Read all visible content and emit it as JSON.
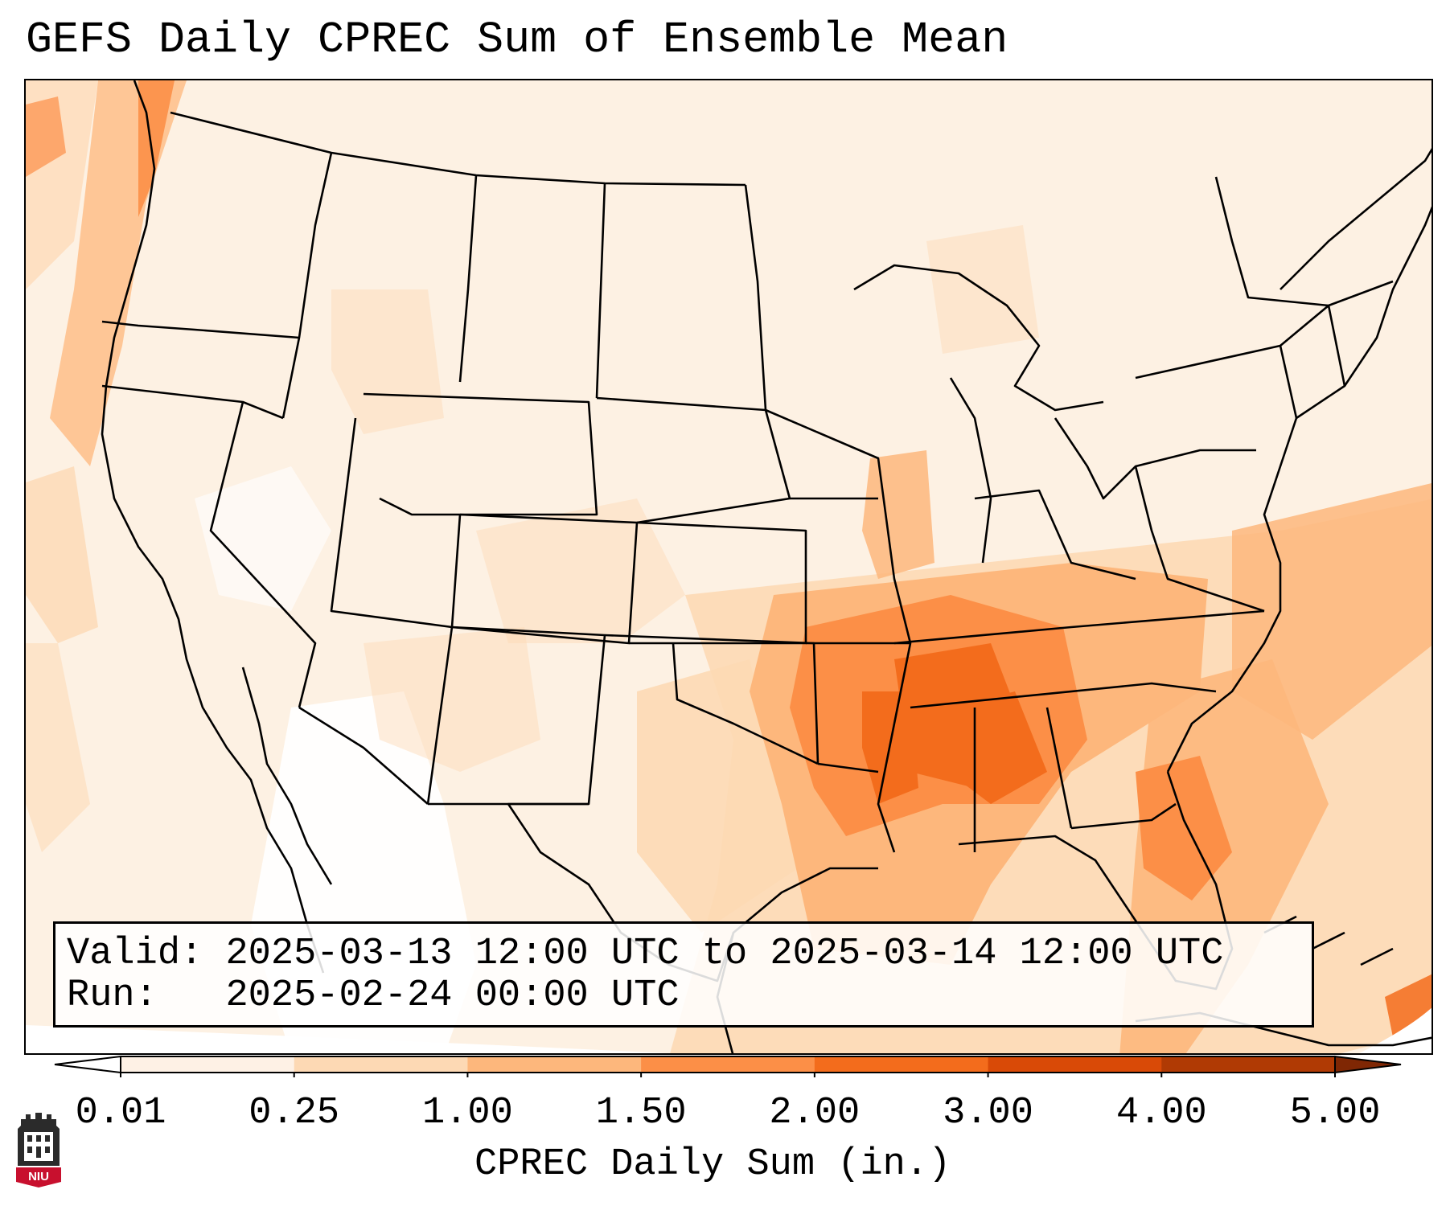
{
  "title": "GEFS Daily CPREC Sum of Ensemble Mean",
  "info": {
    "valid_label": "Valid:",
    "valid_value": "2025-03-13 12:00 UTC to 2025-03-14 12:00 UTC",
    "run_label": "Run:",
    "run_value": "2025-02-24 00:00 UTC"
  },
  "colorbar": {
    "label": "CPREC Daily Sum (in.)",
    "ticks": [
      "0.01",
      "0.25",
      "1.00",
      "1.50",
      "2.00",
      "3.00",
      "4.00",
      "5.00"
    ],
    "colors": [
      "#fef1e5",
      "#fdd9b4",
      "#fdb77c",
      "#fc8f47",
      "#f36c1c",
      "#d94a07",
      "#b03a04"
    ],
    "under_color": "#ffffff",
    "over_color": "#7f2704"
  },
  "logo": {
    "text": "NIU",
    "color": "#c8102e"
  }
}
